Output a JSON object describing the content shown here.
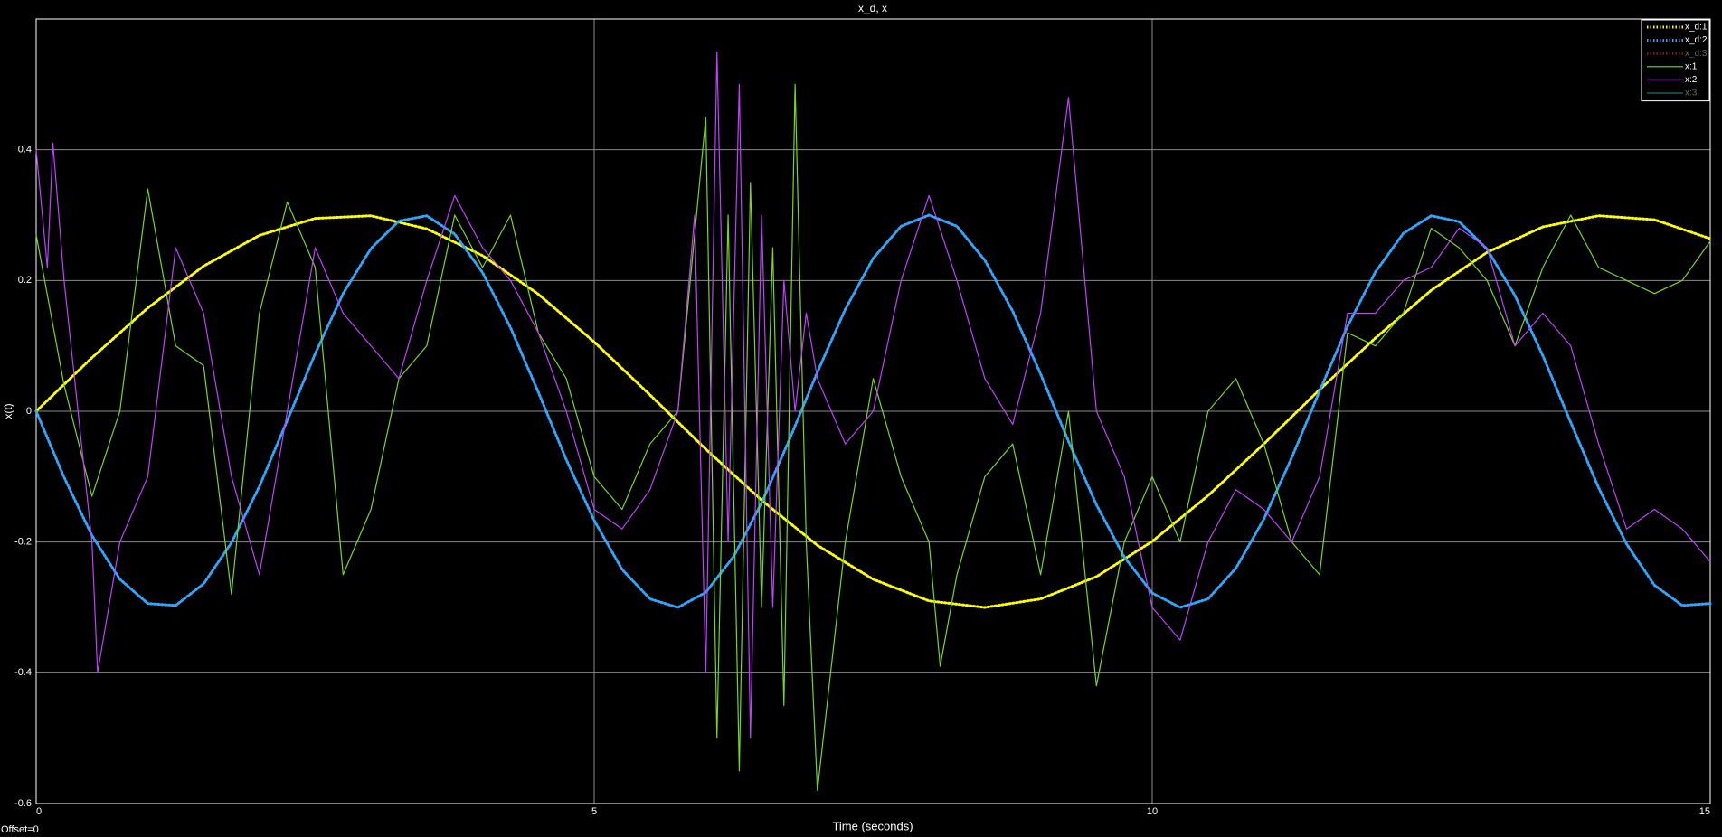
{
  "chart_data": {
    "type": "line",
    "title": "x_d, x",
    "xlabel": "Time (seconds)",
    "ylabel": "x(t)",
    "footnote": "Offset=0",
    "xlim": [
      0,
      15
    ],
    "xticks": [
      0,
      5,
      10,
      15
    ],
    "ylim": [
      -0.6,
      0.6
    ],
    "yticks": [
      -0.6,
      -0.4,
      -0.2,
      0,
      0.2,
      0.4
    ],
    "grid": true,
    "legend": "upper right",
    "series": [
      {
        "name": "x_d:1",
        "color": "#ffff00",
        "style": "dotted",
        "visible": true,
        "x": [
          0,
          0.5,
          1,
          1.5,
          2,
          2.5,
          3,
          3.5,
          4,
          4.5,
          5,
          5.5,
          6,
          6.5,
          7,
          7.5,
          8,
          8.5,
          9,
          9.5,
          10,
          10.5,
          11,
          11.5,
          12,
          12.5,
          13,
          13.5,
          14,
          14.5,
          15
        ],
        "values": [
          0,
          0.082,
          0.158,
          0.222,
          0.269,
          0.295,
          0.299,
          0.279,
          0.238,
          0.179,
          0.106,
          0.025,
          -0.058,
          -0.136,
          -0.205,
          -0.257,
          -0.29,
          -0.3,
          -0.287,
          -0.253,
          -0.199,
          -0.129,
          -0.05,
          0.033,
          0.112,
          0.185,
          0.243,
          0.282,
          0.299,
          0.293,
          0.264
        ]
      },
      {
        "name": "x_d:2",
        "color": "#2ea8ff",
        "style": "dotted",
        "visible": true,
        "x": [
          0,
          0.25,
          0.5,
          0.75,
          1,
          1.25,
          1.5,
          1.75,
          2,
          2.25,
          2.5,
          2.75,
          3,
          3.25,
          3.5,
          3.75,
          4,
          4.25,
          4.5,
          4.75,
          5,
          5.25,
          5.5,
          5.75,
          6,
          6.25,
          6.5,
          6.75,
          7,
          7.25,
          7.5,
          7.75,
          8,
          8.25,
          8.5,
          8.75,
          9,
          9.25,
          9.5,
          9.75,
          10,
          10.25,
          10.5,
          10.75,
          11,
          11.25,
          11.5,
          11.75,
          12,
          12.25,
          12.5,
          12.75,
          13,
          13.25,
          13.5,
          13.75,
          14,
          14.25,
          14.5,
          14.75,
          15
        ],
        "values": [
          0,
          -0.101,
          -0.19,
          -0.257,
          -0.294,
          -0.297,
          -0.264,
          -0.201,
          -0.115,
          -0.014,
          0.088,
          0.18,
          0.249,
          0.291,
          0.299,
          0.271,
          0.212,
          0.128,
          0.029,
          -0.074,
          -0.167,
          -0.242,
          -0.287,
          -0.3,
          -0.277,
          -0.222,
          -0.14,
          -0.043,
          0.06,
          0.156,
          0.234,
          0.283,
          0.3,
          0.283,
          0.231,
          0.153,
          0.057,
          -0.046,
          -0.143,
          -0.223,
          -0.278,
          -0.3,
          -0.287,
          -0.24,
          -0.165,
          -0.071,
          0.031,
          0.13,
          0.213,
          0.272,
          0.299,
          0.29,
          0.248,
          0.177,
          0.085,
          -0.017,
          -0.117,
          -0.203,
          -0.266,
          -0.297,
          -0.294
        ]
      },
      {
        "name": "x_d:3",
        "color": "#a0302a",
        "style": "dotted",
        "visible": false
      },
      {
        "name": "x:1",
        "color": "#78d81c",
        "style": "solid",
        "visible": true,
        "x": [
          0,
          0.25,
          0.5,
          0.75,
          1,
          1.25,
          1.5,
          1.75,
          2,
          2.25,
          2.5,
          2.75,
          3,
          3.25,
          3.5,
          3.75,
          4,
          4.25,
          4.5,
          4.75,
          5,
          5.25,
          5.5,
          5.75,
          6,
          6.1,
          6.2,
          6.3,
          6.4,
          6.5,
          6.6,
          6.7,
          6.8,
          6.9,
          7,
          7.25,
          7.5,
          7.75,
          8,
          8.1,
          8.25,
          8.5,
          8.75,
          9,
          9.25,
          9.5,
          9.75,
          10,
          10.25,
          10.5,
          10.75,
          11,
          11.25,
          11.5,
          11.75,
          12,
          12.25,
          12.5,
          12.75,
          13,
          13.25,
          13.5,
          13.75,
          14,
          14.25,
          14.5,
          14.75,
          15
        ],
        "values": [
          0.27,
          0.04,
          -0.13,
          0,
          0.34,
          0.1,
          0.07,
          -0.28,
          0.15,
          0.32,
          0.22,
          -0.25,
          -0.15,
          0.05,
          0.1,
          0.3,
          0.22,
          0.3,
          0.12,
          0.05,
          -0.1,
          -0.15,
          -0.05,
          0,
          0.45,
          -0.5,
          0.3,
          -0.55,
          0.35,
          -0.3,
          0.25,
          -0.45,
          0.5,
          -0.2,
          -0.58,
          -0.2,
          0.05,
          -0.1,
          -0.2,
          -0.39,
          -0.25,
          -0.1,
          -0.05,
          -0.25,
          0,
          -0.42,
          -0.2,
          -0.1,
          -0.2,
          0,
          0.05,
          -0.05,
          -0.2,
          -0.25,
          0.12,
          0.1,
          0.15,
          0.28,
          0.25,
          0.2,
          0.1,
          0.22,
          0.3,
          0.22,
          0.2,
          0.18,
          0.2,
          0.26
        ]
      },
      {
        "name": "x:2",
        "color": "#c040ff",
        "style": "solid",
        "visible": true,
        "x": [
          0,
          0.1,
          0.15,
          0.25,
          0.5,
          0.55,
          0.75,
          1,
          1.25,
          1.5,
          1.75,
          2,
          2.25,
          2.5,
          2.75,
          3,
          3.25,
          3.5,
          3.75,
          4,
          4.25,
          4.5,
          4.75,
          5,
          5.25,
          5.5,
          5.75,
          5.9,
          6,
          6.1,
          6.2,
          6.3,
          6.4,
          6.5,
          6.6,
          6.7,
          6.8,
          6.9,
          7,
          7.25,
          7.5,
          7.75,
          8,
          8.25,
          8.5,
          8.75,
          9,
          9.25,
          9.5,
          9.75,
          10,
          10.25,
          10.5,
          10.75,
          11,
          11.25,
          11.5,
          11.75,
          12,
          12.25,
          12.5,
          12.75,
          13,
          13.25,
          13.5,
          13.75,
          14,
          14.25,
          14.5,
          14.75,
          15
        ],
        "values": [
          0.4,
          0.22,
          0.41,
          0.2,
          -0.2,
          -0.4,
          -0.2,
          -0.1,
          0.25,
          0.15,
          -0.1,
          -0.25,
          0,
          0.25,
          0.15,
          0.1,
          0.05,
          0.2,
          0.33,
          0.25,
          0.2,
          0.12,
          0,
          -0.15,
          -0.18,
          -0.12,
          0,
          0.3,
          -0.4,
          0.55,
          -0.2,
          0.5,
          -0.5,
          0.3,
          -0.3,
          0.2,
          0,
          0.15,
          0.05,
          -0.05,
          0,
          0.2,
          0.33,
          0.2,
          0.05,
          -0.02,
          0.15,
          0.48,
          0,
          -0.1,
          -0.3,
          -0.35,
          -0.2,
          -0.12,
          -0.15,
          -0.2,
          -0.1,
          0.15,
          0.15,
          0.2,
          0.22,
          0.28,
          0.25,
          0.1,
          0.15,
          0.1,
          -0.05,
          -0.18,
          -0.15,
          -0.18,
          -0.23
        ]
      },
      {
        "name": "x:3",
        "color": "#3399aa",
        "style": "solid",
        "visible": false
      }
    ]
  }
}
